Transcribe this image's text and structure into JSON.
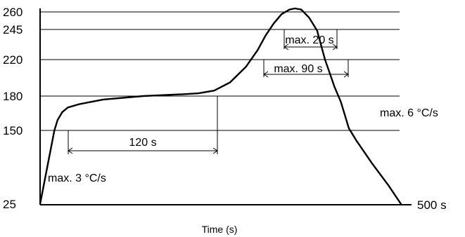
{
  "chart_data": {
    "type": "line",
    "title": "",
    "xlabel": "Time (s)",
    "ylabel": "",
    "x_end_label": "500 s",
    "ylim": [
      25,
      260
    ],
    "y_ticks": [
      25,
      150,
      180,
      220,
      245,
      260
    ],
    "grid": true,
    "series": [
      {
        "x": [
          0,
          18,
          22,
          28,
          35,
          50,
          80,
          130,
          180,
          200,
          220,
          240,
          260,
          275,
          285,
          295,
          305,
          315,
          322,
          330,
          340,
          350,
          360,
          366,
          372,
          380,
          390,
          400,
          420,
          440,
          456
        ],
        "y": [
          25,
          150,
          159,
          166,
          170,
          173,
          177,
          180,
          182,
          183,
          186,
          195,
          212,
          228,
          240,
          250,
          258,
          262,
          263,
          262,
          255,
          244,
          220,
          205,
          190,
          175,
          152,
          132,
          93,
          57,
          25
        ]
      }
    ],
    "annotations": [
      {
        "text": "max. 3 °C/s"
      },
      {
        "text": "120 s"
      },
      {
        "text": "max. 90 s"
      },
      {
        "text": "max. 20 s"
      },
      {
        "text": "max. 6 °C/s"
      }
    ]
  }
}
